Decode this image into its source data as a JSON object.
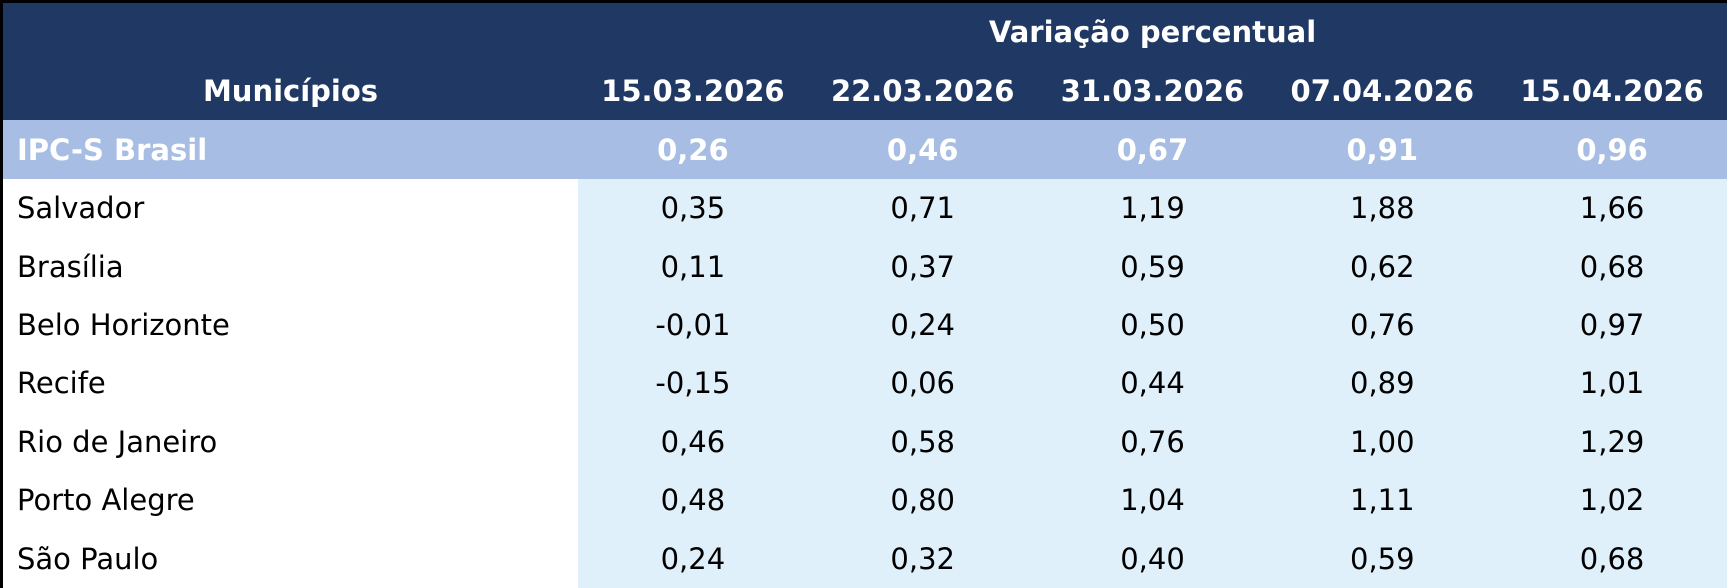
{
  "table": {
    "group_title": "Variação percentual",
    "first_column": "Municípios",
    "columns": [
      "15.03.2026",
      "22.03.2026",
      "31.03.2026",
      "07.04.2026",
      "15.04.2026"
    ],
    "rows": [
      [
        "IPC-S Brasil",
        "0,26",
        "0,46",
        "0,67",
        "0,91",
        "0,96"
      ],
      [
        "Salvador",
        "0,35",
        "0,71",
        "1,19",
        "1,88",
        "1,66"
      ],
      [
        "Brasília",
        "0,11",
        "0,37",
        "0,59",
        "0,62",
        "0,68"
      ],
      [
        "Belo Horizonte",
        "-0,01",
        "0,24",
        "0,50",
        "0,76",
        "0,97"
      ],
      [
        "Recife",
        "-0,15",
        "0,06",
        "0,44",
        "0,89",
        "1,01"
      ],
      [
        "Rio de Janeiro",
        "0,46",
        "0,58",
        "0,76",
        "1,00",
        "1,29"
      ],
      [
        "Porto Alegre",
        "0,48",
        "0,80",
        "1,04",
        "1,11",
        "1,02"
      ],
      [
        "São Paulo",
        "0,24",
        "0,32",
        "0,40",
        "0,59",
        "0,68"
      ]
    ]
  }
}
